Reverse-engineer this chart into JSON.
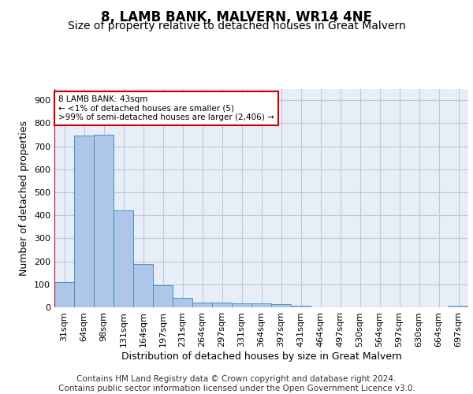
{
  "title": "8, LAMB BANK, MALVERN, WR14 4NE",
  "subtitle": "Size of property relative to detached houses in Great Malvern",
  "xlabel": "Distribution of detached houses by size in Great Malvern",
  "ylabel": "Number of detached properties",
  "footer_line1": "Contains HM Land Registry data © Crown copyright and database right 2024.",
  "footer_line2": "Contains public sector information licensed under the Open Government Licence v3.0.",
  "bar_labels": [
    "31sqm",
    "64sqm",
    "98sqm",
    "131sqm",
    "164sqm",
    "197sqm",
    "231sqm",
    "264sqm",
    "297sqm",
    "331sqm",
    "364sqm",
    "397sqm",
    "431sqm",
    "464sqm",
    "497sqm",
    "530sqm",
    "564sqm",
    "597sqm",
    "630sqm",
    "664sqm",
    "697sqm"
  ],
  "bar_values": [
    110,
    745,
    750,
    420,
    190,
    95,
    40,
    20,
    20,
    17,
    17,
    15,
    8,
    0,
    0,
    0,
    0,
    0,
    0,
    0,
    8
  ],
  "bar_color": "#aec6e8",
  "bar_edge_color": "#4a90c4",
  "bg_color": "#e8eef7",
  "annotation_box_text": "8 LAMB BANK: 43sqm\n← <1% of detached houses are smaller (5)\n>99% of semi-detached houses are larger (2,406) →",
  "annotation_box_color": "#ffffff",
  "annotation_box_edge_color": "#cc0000",
  "ylim": [
    0,
    950
  ],
  "yticks": [
    0,
    100,
    200,
    300,
    400,
    500,
    600,
    700,
    800,
    900
  ],
  "grid_color": "#c0c8d8",
  "title_fontsize": 12,
  "subtitle_fontsize": 10,
  "axis_label_fontsize": 9,
  "tick_fontsize": 8,
  "footer_fontsize": 7.5
}
